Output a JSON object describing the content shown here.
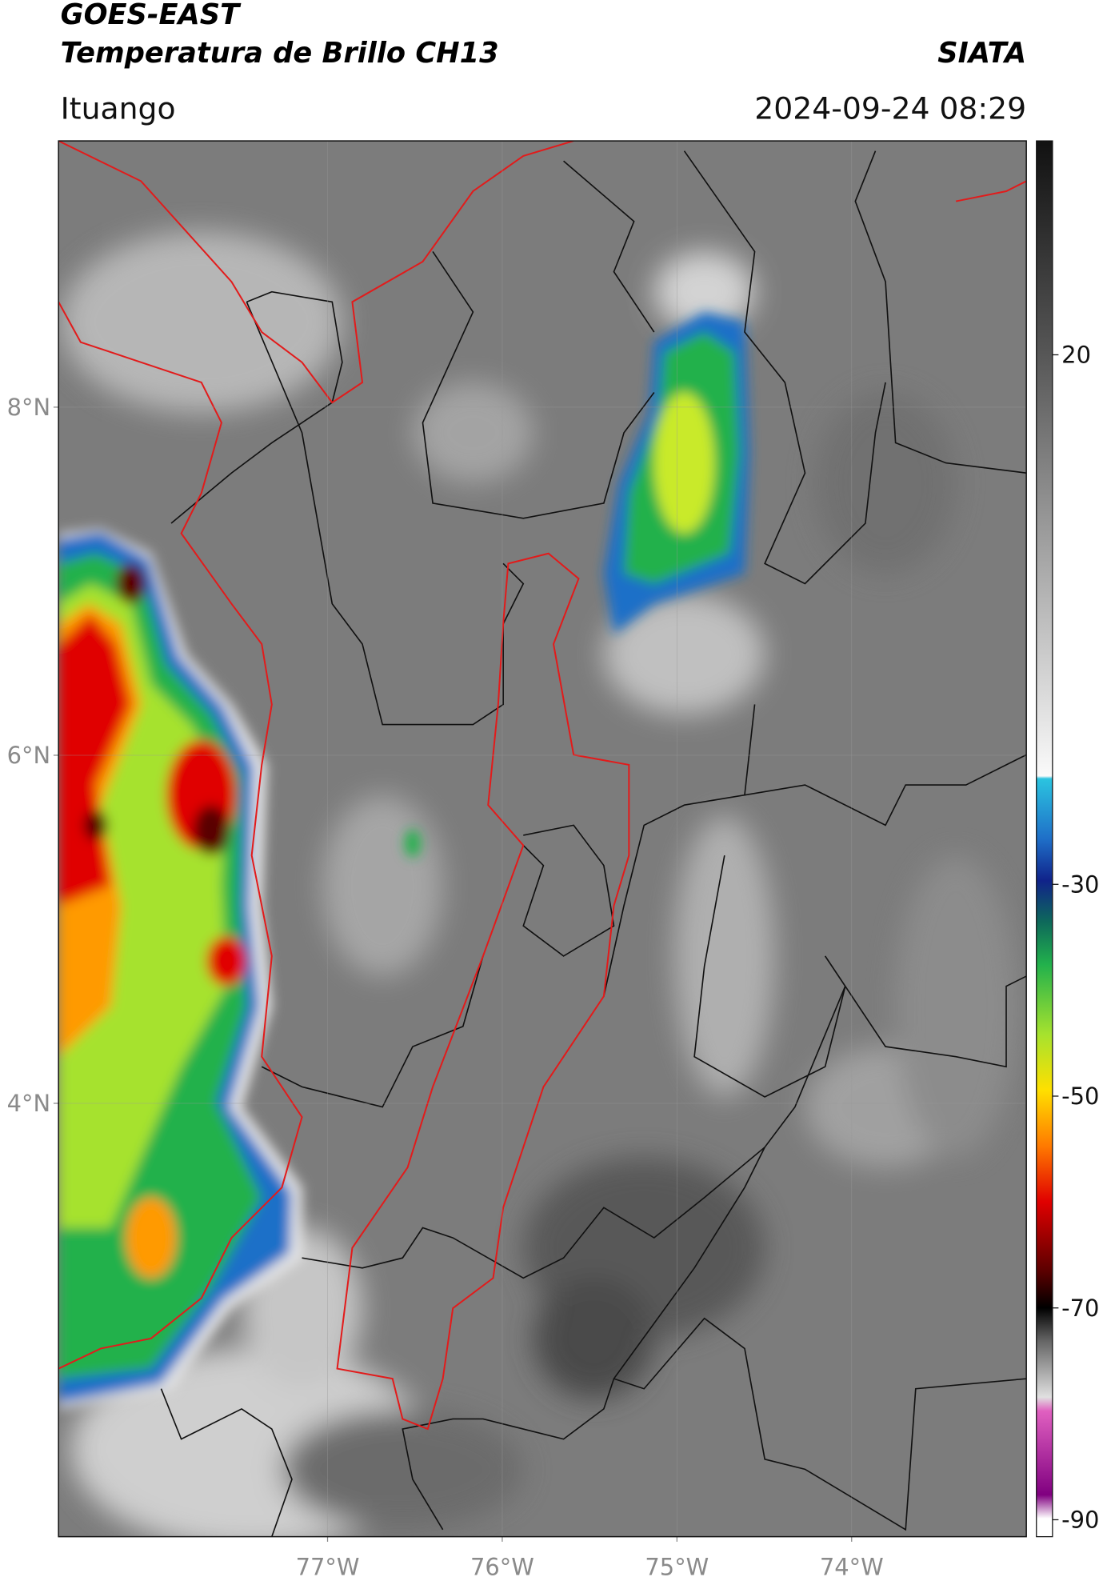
{
  "header": {
    "title": "GOES-EAST",
    "subtitle": "Temperatura de Brillo CH13",
    "brand": "SIATA",
    "location": "Ituango",
    "datetime": "2024-09-24 08:29"
  },
  "map": {
    "xlim": [
      -78.54,
      -73.0
    ],
    "ylim": [
      1.51,
      9.53
    ],
    "xticks": [
      {
        "value": -77,
        "label": "77°W"
      },
      {
        "value": -76,
        "label": "76°W"
      },
      {
        "value": -75,
        "label": "75°W"
      },
      {
        "value": -74,
        "label": "74°W"
      }
    ],
    "yticks": [
      {
        "value": 8,
        "label": "8°N"
      },
      {
        "value": 6,
        "label": "6°N"
      },
      {
        "value": 4,
        "label": "4°N"
      }
    ],
    "grid": true
  },
  "colorbar": {
    "lim": [
      -91.6,
      40.2
    ],
    "ticks": [
      20,
      -30,
      -50,
      -70,
      -90
    ]
  }
}
